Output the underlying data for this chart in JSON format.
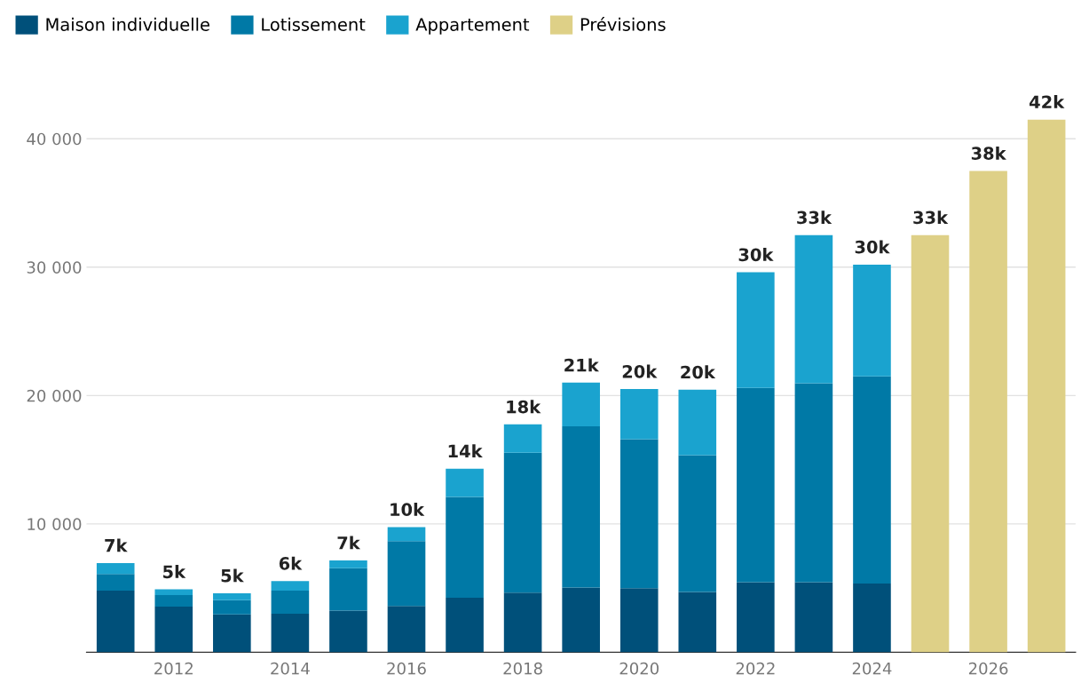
{
  "chart_data": {
    "type": "bar",
    "stacked": true,
    "x": [
      2011,
      2012,
      2013,
      2014,
      2015,
      2016,
      2017,
      2018,
      2019,
      2020,
      2021,
      2022,
      2023,
      2024,
      2025,
      2026,
      2027
    ],
    "series": [
      {
        "name": "Maison individuelle",
        "color": "#00507a",
        "values": [
          4800,
          3550,
          2950,
          3000,
          3250,
          3600,
          4250,
          4650,
          5050,
          5000,
          4700,
          5450,
          5450,
          5350,
          null,
          null,
          null
        ]
      },
      {
        "name": "Lotissement",
        "color": "#0079a6",
        "values": [
          1300,
          900,
          1100,
          1800,
          3300,
          5050,
          7850,
          10900,
          12550,
          11600,
          10650,
          15150,
          15500,
          16150,
          null,
          null,
          null
        ]
      },
      {
        "name": "Appartement",
        "color": "#1aa3cf",
        "values": [
          850,
          450,
          550,
          750,
          600,
          1100,
          2200,
          2200,
          3400,
          3900,
          5100,
          9000,
          11550,
          8700,
          null,
          null,
          null
        ]
      },
      {
        "name": "Prévisions",
        "color": "#ded087",
        "values": [
          null,
          null,
          null,
          null,
          null,
          null,
          null,
          null,
          null,
          null,
          null,
          null,
          null,
          null,
          32500,
          37500,
          41500
        ]
      }
    ],
    "totals": [
      "7k",
      "5k",
      "5k",
      "6k",
      "7k",
      "10k",
      "14k",
      "18k",
      "21k",
      "20k",
      "20k",
      "30k",
      "33k",
      "30k",
      "33k",
      "38k",
      "42k"
    ],
    "xlim": [
      2010.5,
      2027.5
    ],
    "xticks": [
      2012,
      2014,
      2016,
      2018,
      2020,
      2022,
      2024,
      2026
    ],
    "yticks": [
      {
        "value": 10000,
        "label": "10 000"
      },
      {
        "value": 20000,
        "label": "20 000"
      },
      {
        "value": 30000,
        "label": "30 000"
      },
      {
        "value": 40000,
        "label": "40 000"
      }
    ],
    "ylim": [
      0,
      41500
    ],
    "grid": "y",
    "legend": "top left"
  }
}
